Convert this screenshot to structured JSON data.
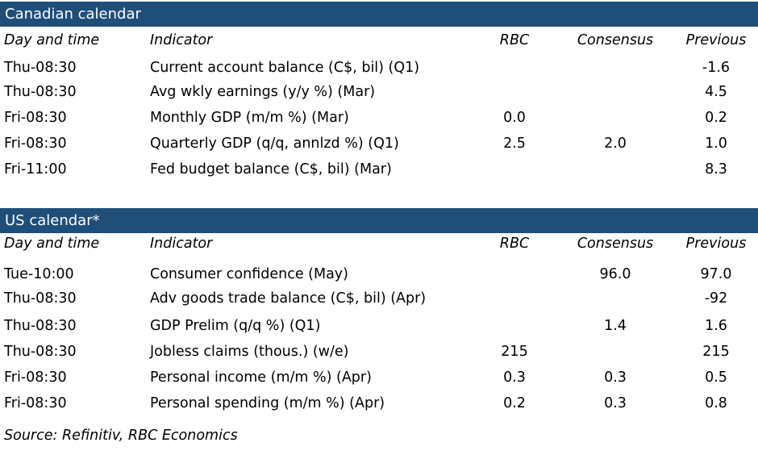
{
  "canadian": {
    "title": "Canadian calendar",
    "headers": {
      "day": "Day and time",
      "indicator": "Indicator",
      "rbc": "RBC",
      "consensus": "Consensus",
      "previous": "Previous"
    },
    "rows": [
      {
        "day": "Thu-08:30",
        "indicator": "Current account balance (C$, bil) (Q1)",
        "rbc": "",
        "consensus": "",
        "previous": "-1.6"
      },
      {
        "day": "Thu-08:30",
        "indicator": "Avg wkly earnings (y/y %) (Mar)",
        "rbc": "",
        "consensus": "",
        "previous": "4.5"
      },
      {
        "day": "Fri-08:30",
        "indicator": "Monthly GDP (m/m %) (Mar)",
        "rbc": "0.0",
        "consensus": "",
        "previous": "0.2"
      },
      {
        "day": "Fri-08:30",
        "indicator": "Quarterly GDP (q/q, annlzd %) (Q1)",
        "rbc": "2.5",
        "consensus": "2.0",
        "previous": "1.0"
      },
      {
        "day": "Fri-11:00",
        "indicator": "Fed budget balance (C$, bil) (Mar)",
        "rbc": "",
        "consensus": "",
        "previous": "8.3"
      }
    ]
  },
  "us": {
    "title": "US calendar*",
    "headers": {
      "day": "Day and time",
      "indicator": "Indicator",
      "rbc": "RBC",
      "consensus": "Consensus",
      "previous": "Previous"
    },
    "rows": [
      {
        "day": "Tue-10:00",
        "indicator": "Consumer confidence (May)",
        "rbc": "",
        "consensus": "96.0",
        "previous": "97.0"
      },
      {
        "day": "Thu-08:30",
        "indicator": "Adv goods trade balance (C$, bil) (Apr)",
        "rbc": "",
        "consensus": "",
        "previous": "-92"
      },
      {
        "day": "Thu-08:30",
        "indicator": "GDP Prelim (q/q %) (Q1)",
        "rbc": "",
        "consensus": "1.4",
        "previous": "1.6"
      },
      {
        "day": "Thu-08:30",
        "indicator": "Jobless claims (thous.) (w/e)",
        "rbc": "215",
        "consensus": "",
        "previous": "215"
      },
      {
        "day": "Fri-08:30",
        "indicator": "Personal income (m/m %) (Apr)",
        "rbc": "0.3",
        "consensus": "0.3",
        "previous": "0.5"
      },
      {
        "day": "Fri-08:30",
        "indicator": "Personal spending (m/m %) (Apr)",
        "rbc": "0.2",
        "consensus": "0.3",
        "previous": "0.8"
      }
    ]
  },
  "source": "Source: Refinitiv,  RBC Economics"
}
